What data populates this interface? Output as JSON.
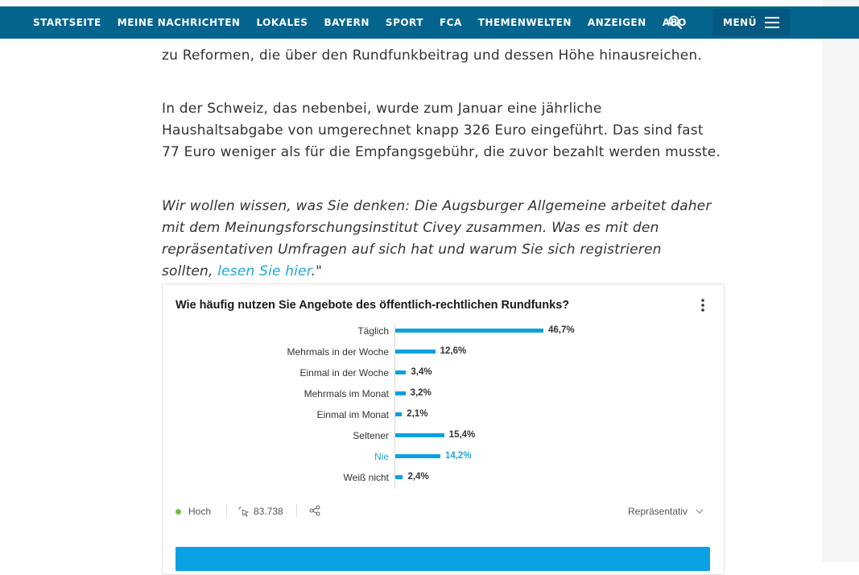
{
  "nav": {
    "items": [
      "STARTSEITE",
      "MEINE NACHRICHTEN",
      "LOKALES",
      "BAYERN",
      "SPORT",
      "FCA",
      "THEMENWELTEN",
      "ANZEIGEN",
      "ABO"
    ],
    "search_icon": "search-icon",
    "menu_label": "MENÜ",
    "menu_icon": "hamburger-icon",
    "background": "#04648e"
  },
  "article": {
    "p1": "zu Reformen, die über den Rundfunkbeitrag und dessen Höhe hinausreichen.",
    "p2_lines": [
      "In der Schweiz, das nebenbei, wurde zum Januar eine jährliche",
      "Haushaltsabgabe von umgerechnet knapp 326 Euro eingeführt. Das sind fast",
      "77 Euro weniger als für die Empfangsgebühr, die zuvor bezahlt werden musste."
    ],
    "p3_lines": [
      "Wir wollen wissen, was Sie denken: Die Augsburger Allgemeine arbeitet daher",
      "mit dem Meinungsforschungsinstitut Civey zusammen. Was es mit den",
      "repräsentativen Umfragen auf sich hat und warum Sie sich registrieren"
    ],
    "p3_last_prefix": "sollten, ",
    "p3_link": "lesen Sie hier",
    "p3_suffix": ".\"",
    "link_color": "#1ea8d9"
  },
  "poll": {
    "title": "Wie häufig nutzen Sie Angebote des öffentlich-rechtlichen Rundfunks?",
    "menu_icon": "kebab-menu-icon",
    "status_label": "Hoch",
    "status_color": "#6cc04a",
    "participants_icon": "cursor-click-icon",
    "participants": "83.738",
    "share_icon": "share-icon",
    "representative_label": "Repräsentativ",
    "representative_icon": "chevron-down-icon",
    "bar_color": "#0aa1e2",
    "highlight_color": "#1ea8d9"
  },
  "chart_data": {
    "type": "bar",
    "orientation": "horizontal",
    "title": "Wie häufig nutzen Sie Angebote des öffentlich-rechtlichen Rundfunks?",
    "categories": [
      "Täglich",
      "Mehrmals in der Woche",
      "Einmal in der Woche",
      "Mehrmals im Monat",
      "Einmal im Monat",
      "Seltener",
      "Nie",
      "Weiß nicht"
    ],
    "values": [
      46.7,
      12.6,
      3.4,
      3.2,
      2.1,
      15.4,
      14.2,
      2.4
    ],
    "value_labels": [
      "46,7%",
      "12,6%",
      "3,4%",
      "3,2%",
      "2,1%",
      "15,4%",
      "14,2%",
      "2,4%"
    ],
    "highlighted_category": "Nie",
    "unit": "%"
  }
}
